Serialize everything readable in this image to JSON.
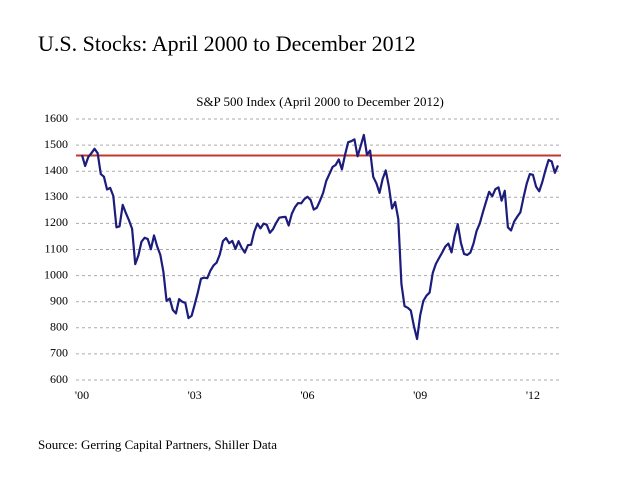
{
  "page_title": "U.S. Stocks:  April 2000 to December 2012",
  "source": "Source: Gerring Capital Partners, Shiller Data",
  "chart_data": {
    "type": "line",
    "title": "S&P 500 Index (April 2000 to December 2012)",
    "categories": [
      "'00",
      null,
      null,
      null,
      null,
      null,
      null,
      null,
      null,
      null,
      null,
      null,
      null,
      null,
      null,
      null,
      null,
      null,
      null,
      null,
      null,
      null,
      null,
      null,
      null,
      null,
      null,
      null,
      null,
      null,
      null,
      null,
      null,
      null,
      null,
      null,
      "'03",
      null,
      null,
      null,
      null,
      null,
      null,
      null,
      null,
      null,
      null,
      null,
      null,
      null,
      null,
      null,
      null,
      null,
      null,
      null,
      null,
      null,
      null,
      null,
      null,
      null,
      null,
      null,
      null,
      null,
      null,
      null,
      null,
      null,
      null,
      null,
      "'06",
      null,
      null,
      null,
      null,
      null,
      null,
      null,
      null,
      null,
      null,
      null,
      null,
      null,
      null,
      null,
      null,
      null,
      null,
      null,
      null,
      null,
      null,
      null,
      null,
      null,
      null,
      null,
      null,
      null,
      null,
      null,
      null,
      null,
      null,
      null,
      "'09",
      null,
      null,
      null,
      null,
      null,
      null,
      null,
      null,
      null,
      null,
      null,
      null,
      null,
      null,
      null,
      null,
      null,
      null,
      null,
      null,
      null,
      null,
      null,
      null,
      null,
      null,
      null,
      null,
      null,
      null,
      null,
      null,
      null,
      null,
      null,
      "'12",
      null,
      null,
      null,
      null,
      null,
      null,
      null,
      null
    ],
    "values": [
      1462,
      1420,
      1454,
      1469,
      1486,
      1469,
      1389,
      1379,
      1330,
      1336,
      1305,
      1185,
      1189,
      1271,
      1240,
      1212,
      1179,
      1044,
      1077,
      1130,
      1145,
      1140,
      1101,
      1154,
      1112,
      1080,
      1014,
      903,
      912,
      868,
      855,
      910,
      900,
      895,
      837,
      846,
      890,
      936,
      988,
      992,
      990,
      1019,
      1039,
      1050,
      1081,
      1132,
      1144,
      1124,
      1133,
      1102,
      1132,
      1106,
      1088,
      1117,
      1118,
      1168,
      1199,
      1181,
      1199,
      1195,
      1164,
      1178,
      1202,
      1222,
      1224,
      1225,
      1192,
      1237,
      1262,
      1278,
      1277,
      1293,
      1302,
      1290,
      1253,
      1260,
      1287,
      1317,
      1363,
      1389,
      1416,
      1424,
      1445,
      1407,
      1463,
      1511,
      1515,
      1522,
      1457,
      1497,
      1539,
      1463,
      1479,
      1378,
      1354,
      1317,
      1370,
      1403,
      1341,
      1257,
      1282,
      1217,
      968,
      883,
      877,
      866,
      806,
      757,
      848,
      903,
      923,
      935,
      1010,
      1045,
      1067,
      1088,
      1111,
      1123,
      1089,
      1152,
      1197,
      1125,
      1083,
      1079,
      1088,
      1122,
      1171,
      1199,
      1242,
      1282,
      1321,
      1304,
      1331,
      1338,
      1287,
      1325,
      1185,
      1173,
      1207,
      1226,
      1243,
      1300,
      1352,
      1389,
      1386,
      1341,
      1323,
      1359,
      1404,
      1443,
      1437,
      1394,
      1422
    ],
    "color": "#1c1c7c",
    "reference_line": {
      "value": 1460,
      "color": "#c0392b"
    },
    "ylim": [
      600,
      1600
    ],
    "yticks": [
      600,
      700,
      800,
      900,
      1000,
      1100,
      1200,
      1300,
      1400,
      1500,
      1600
    ],
    "grid": true
  }
}
